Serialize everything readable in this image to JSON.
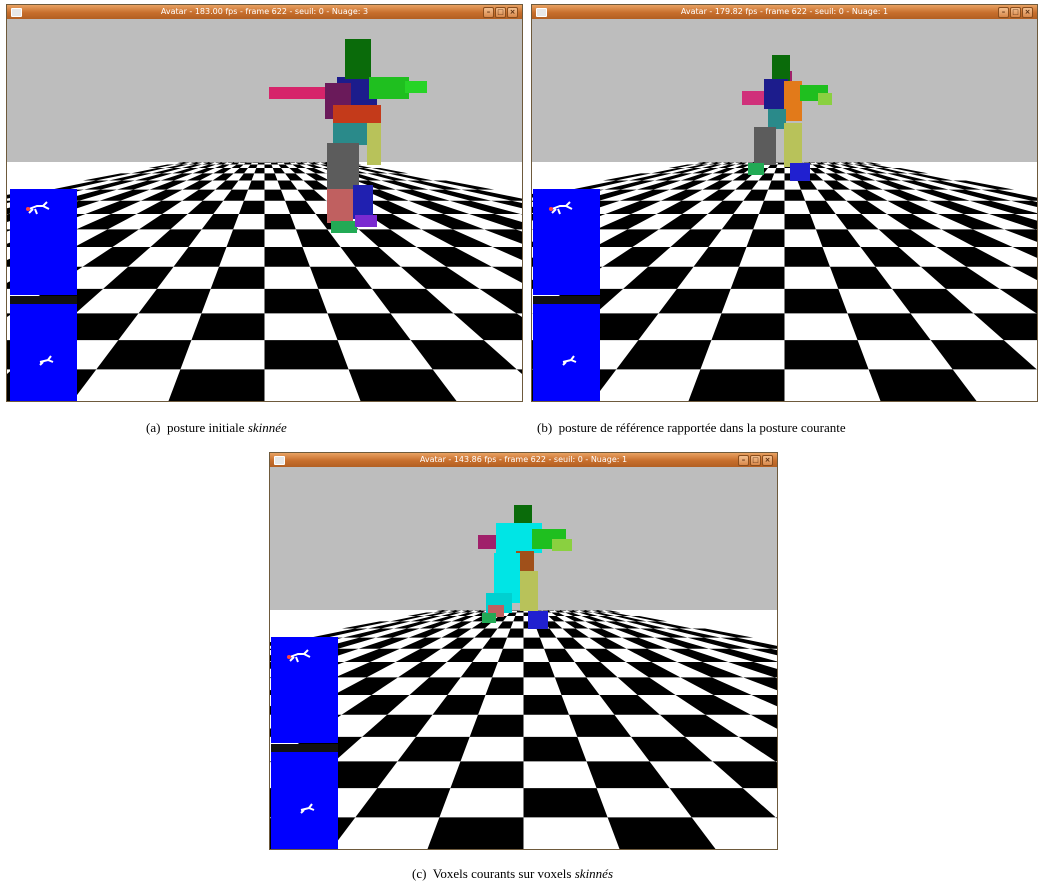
{
  "windows": [
    {
      "id": "a",
      "title": "Avatar - 183.00 fps - frame 622 - seuil: 0 - Nuage: 3",
      "buttons": [
        "–",
        "□",
        "×"
      ],
      "caption": {
        "label": "(a)",
        "text": "posture initiale ",
        "emph": "skinnée",
        "tail": ""
      }
    },
    {
      "id": "b",
      "title": "Avatar - 179.82 fps - frame 622 - seuil: 0 - Nuage: 1",
      "buttons": [
        "–",
        "□",
        "×"
      ],
      "caption": {
        "label": "(b)",
        "text": "posture de référence rapportée dans la posture courante",
        "emph": "",
        "tail": ""
      }
    },
    {
      "id": "c",
      "title": "Avatar - 143.86 fps - frame 622 - seuil: 0 - Nuage: 1",
      "buttons": [
        "–",
        "□",
        "×"
      ],
      "caption": {
        "label": "(c)",
        "text": "Voxels courants sur voxels ",
        "emph": "skinnés",
        "tail": ""
      }
    }
  ],
  "colors": {
    "sky": "#bdbdbd",
    "floor_dark": "#000000",
    "floor_light": "#ffffff",
    "inset_blue": "#0000ff",
    "titlebar": "#d07a36"
  }
}
